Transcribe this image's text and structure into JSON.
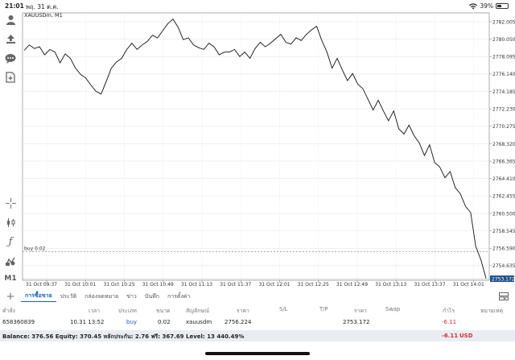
{
  "status_bar": {
    "time": "21:01",
    "date": "พฤ. 31 ต.ค.",
    "battery": "39%",
    "battery_level": 0.39
  },
  "left_toolbar": {
    "timeframe_label": "M1",
    "icons": [
      "person-icon",
      "trade-icon",
      "chat-icon",
      "new-order-icon",
      "crosshair-icon",
      "candles-icon",
      "indicator-f-icon",
      "objects-icon"
    ]
  },
  "chart": {
    "title": "XAUUSDm, M1",
    "order_line_label": "buy 0.02",
    "current_price_label": "2753.172"
  },
  "chart_data": {
    "type": "line",
    "symbol": "XAUUSDm",
    "timeframe": "M1",
    "ylim": [
      2753.0,
      2783.0
    ],
    "y_ticks": [
      "2782.005",
      "2780.050",
      "2778.095",
      "2776.140",
      "2774.185",
      "2772.230",
      "2770.275",
      "2768.320",
      "2766.365",
      "2764.410",
      "2762.455",
      "2760.500",
      "2758.545",
      "2756.590",
      "2754.635"
    ],
    "y_tick_values": [
      2782.005,
      2780.05,
      2778.095,
      2776.14,
      2774.185,
      2772.23,
      2770.275,
      2768.32,
      2766.365,
      2764.41,
      2762.455,
      2760.5,
      2758.545,
      2756.59,
      2754.635
    ],
    "x_ticks": [
      "31 Oct 09:37",
      "31 Oct 10:01",
      "31 Oct 10:25",
      "31 Oct 10:49",
      "31 Oct 11:13",
      "31 Oct 11:37",
      "31 Oct 12:01",
      "31 Oct 12:25",
      "31 Oct 12:49",
      "31 Oct 13:13",
      "31 Oct 13:37",
      "31 Oct 14:01"
    ],
    "x": [
      "09:32",
      "09:35",
      "09:38",
      "09:41",
      "09:44",
      "09:47",
      "09:50",
      "09:53",
      "09:56",
      "09:59",
      "10:02",
      "10:05",
      "10:08",
      "10:11",
      "10:14",
      "10:17",
      "10:20",
      "10:23",
      "10:26",
      "10:29",
      "10:32",
      "10:35",
      "10:38",
      "10:41",
      "10:44",
      "10:47",
      "10:50",
      "10:53",
      "10:56",
      "10:59",
      "11:02",
      "11:05",
      "11:08",
      "11:11",
      "11:14",
      "11:17",
      "11:20",
      "11:23",
      "11:26",
      "11:29",
      "11:32",
      "11:35",
      "11:38",
      "11:41",
      "11:44",
      "11:47",
      "11:50",
      "11:53",
      "11:56",
      "11:59",
      "12:02",
      "12:05",
      "12:08",
      "12:11",
      "12:14",
      "12:17",
      "12:20",
      "12:23",
      "12:26",
      "12:29",
      "12:32",
      "12:35",
      "12:38",
      "12:41",
      "12:44",
      "12:47",
      "12:50",
      "12:53",
      "12:56",
      "12:59",
      "13:02",
      "13:05",
      "13:08",
      "13:11",
      "13:14",
      "13:17",
      "13:20",
      "13:23",
      "13:26",
      "13:29",
      "13:32",
      "13:35",
      "13:38",
      "13:41",
      "13:44",
      "13:47",
      "13:50",
      "13:53",
      "13:56",
      "13:59",
      "14:02"
    ],
    "values": [
      2778.8,
      2779.4,
      2779.0,
      2779.2,
      2778.3,
      2778.9,
      2778.6,
      2777.4,
      2778.4,
      2777.9,
      2776.8,
      2776.1,
      2775.7,
      2774.9,
      2774.2,
      2773.9,
      2775.3,
      2776.8,
      2777.5,
      2777.9,
      2778.9,
      2779.6,
      2778.9,
      2779.4,
      2779.8,
      2780.5,
      2780.2,
      2781.0,
      2781.8,
      2782.3,
      2781.4,
      2780.0,
      2780.2,
      2779.4,
      2779.1,
      2778.9,
      2779.6,
      2779.2,
      2778.3,
      2778.6,
      2778.6,
      2778.9,
      2778.1,
      2778.6,
      2777.9,
      2779.0,
      2779.7,
      2779.2,
      2779.6,
      2780.1,
      2780.6,
      2779.7,
      2779.5,
      2780.2,
      2779.9,
      2780.6,
      2781.1,
      2781.5,
      2779.9,
      2778.6,
      2776.8,
      2777.9,
      2776.6,
      2775.4,
      2776.2,
      2775.0,
      2774.5,
      2773.3,
      2772.1,
      2773.2,
      2772.0,
      2770.9,
      2772.0,
      2770.0,
      2769.4,
      2770.4,
      2769.2,
      2768.4,
      2767.0,
      2768.2,
      2766.2,
      2765.7,
      2764.5,
      2765.2,
      2763.4,
      2762.7,
      2761.3,
      2760.6,
      2756.8,
      2755.3,
      2753.2
    ],
    "order_line": {
      "label": "buy 0.02",
      "price": 2756.224
    },
    "current_price": 2753.172,
    "grid": true
  },
  "tabs": [
    {
      "label": "การซื้อขาย",
      "active": true
    },
    {
      "label": "ประวัติ",
      "active": false
    },
    {
      "label": "กล่องจดหมาย",
      "active": false
    },
    {
      "label": "ข่าว",
      "active": false
    },
    {
      "label": "บันทึก",
      "active": false
    },
    {
      "label": "การตั้งค่า",
      "active": false
    }
  ],
  "table": {
    "headers": [
      "คำสั่ง",
      "เวลา",
      "ประเภท",
      "ขนาด",
      "สัญลักษณ์",
      "ราคา",
      "S/L",
      "T/P",
      "ราคา",
      "Swap",
      "กำไร",
      "หมายเหตุ"
    ],
    "row": {
      "order": "658360839",
      "time": "10.31 13:52",
      "type": "buy",
      "size": "0.02",
      "symbol": "xauusdm",
      "open_price": "2756.224",
      "sl": "",
      "tp": "",
      "price": "2753.172",
      "swap": "",
      "profit": "-6.11",
      "comment": ""
    }
  },
  "balance_bar": {
    "text": "Balance: 376.56 Equity: 370.45 หลักประกัน: 2.76 ฟรี: 367.69 Level: 13 440.49%",
    "profit": "-6.11",
    "currency": "USD"
  },
  "colors": {
    "accent": "#1a5fb4",
    "loss": "#d03030",
    "grid": "#e6e6e6",
    "price_label_bg": "#1f4e8c"
  }
}
